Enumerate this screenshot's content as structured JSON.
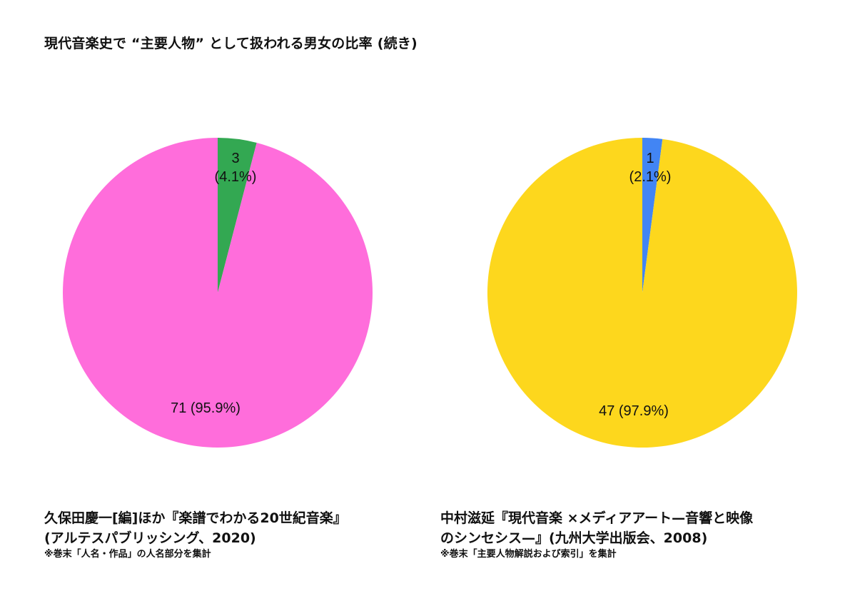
{
  "page_title": "現代音楽史で “主要人物” として扱われる男女の比率 (続き)",
  "chart_data": [
    {
      "type": "pie",
      "slices": [
        {
          "value": 3,
          "percent": 4.1,
          "label": "3\n(4.1%)",
          "color": "#33a852"
        },
        {
          "value": 71,
          "percent": 95.9,
          "label": "71 (95.9%)",
          "color": "#ff6ddb"
        }
      ]
    },
    {
      "type": "pie",
      "slices": [
        {
          "value": 1,
          "percent": 2.1,
          "label": "1\n(2.1%)",
          "color": "#4285f4"
        },
        {
          "value": 47,
          "percent": 97.9,
          "label": "47 (97.9%)",
          "color": "#fdd71d"
        }
      ]
    }
  ],
  "captions": [
    {
      "line1": "久保田慶一[編]ほか『楽譜でわかる20世紀音楽』",
      "line2": "(アルテスパブリッシング、2020)",
      "note": "※巻末「人名・作品」の人名部分を集計"
    },
    {
      "line1": "中村滋延『現代音楽 ×メディアアート—音響と映像",
      "line2": "のシンセシス—』(九州大学出版会、2008)",
      "note": "※巻末「主要人物解説および索引」を集計"
    }
  ]
}
